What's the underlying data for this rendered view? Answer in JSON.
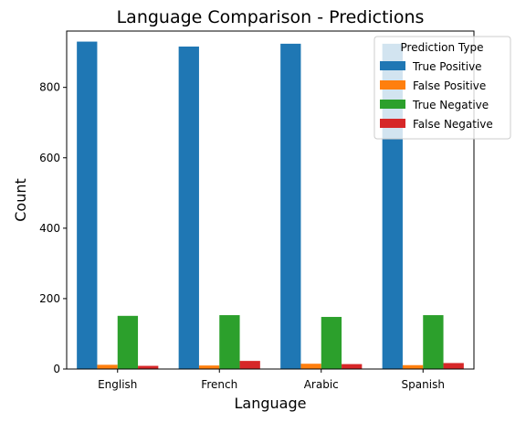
{
  "chart_data": {
    "type": "bar",
    "title": "Language Comparison - Predictions",
    "xlabel": "Language",
    "ylabel": "Count",
    "categories": [
      "English",
      "French",
      "Arabic",
      "Spanish"
    ],
    "ylim": [
      0,
      960
    ],
    "yticks": [
      0,
      200,
      400,
      600,
      800
    ],
    "grid": false,
    "legend": {
      "title": "Prediction Type",
      "position": "top-right"
    },
    "series": [
      {
        "name": "True Positive",
        "color": "#1f77b4",
        "values": [
          930,
          916,
          924,
          924
        ]
      },
      {
        "name": "False Positive",
        "color": "#ff7f0e",
        "values": [
          12,
          10,
          15,
          11
        ]
      },
      {
        "name": "True Negative",
        "color": "#2ca02c",
        "values": [
          151,
          153,
          148,
          153
        ]
      },
      {
        "name": "False Negative",
        "color": "#d62728",
        "values": [
          9,
          23,
          14,
          17
        ]
      }
    ]
  }
}
